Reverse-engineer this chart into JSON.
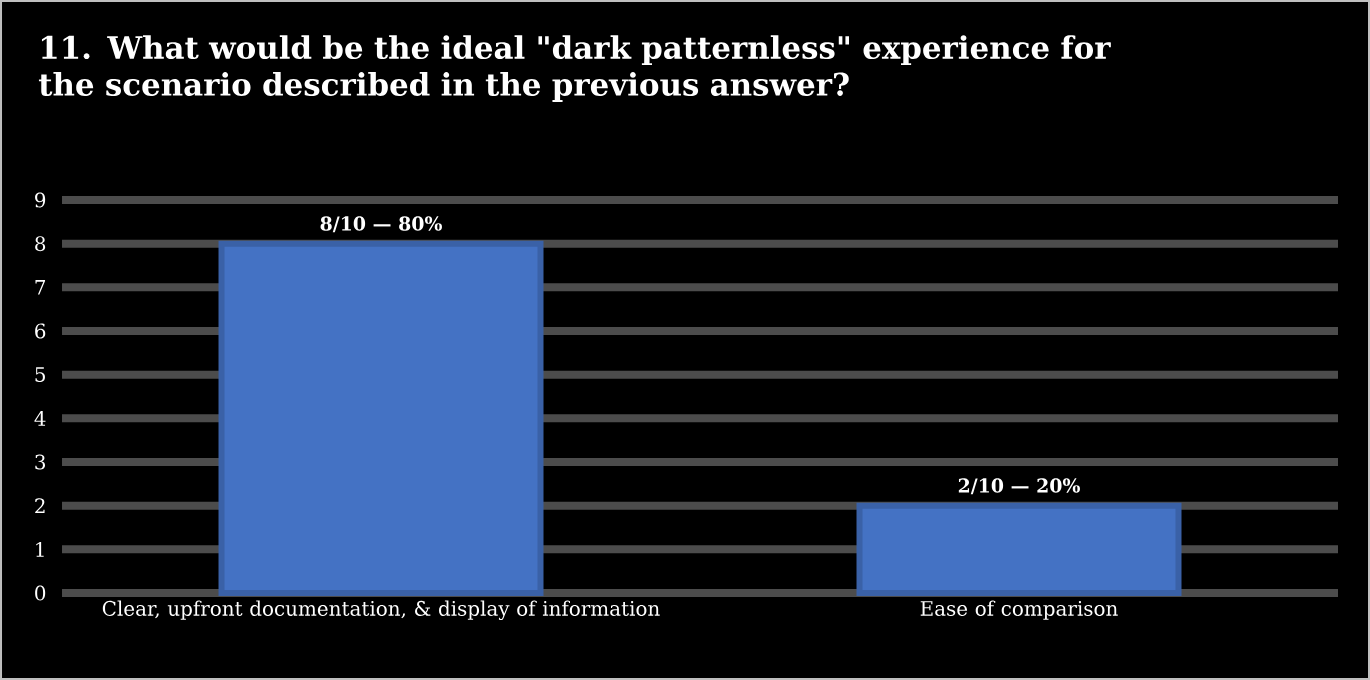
{
  "chart_data": {
    "type": "bar",
    "title": "11. What would be the ideal \"dark patternless\" experience for the scenario described in the previous answer?",
    "categories": [
      "Clear, upfront documentation, & display of information",
      "Ease of comparison"
    ],
    "values": [
      8,
      2
    ],
    "color": "#4472c4",
    "value_labels": [
      "8/10 — 80%",
      "2/10 — 20%"
    ],
    "ylim": [
      0,
      9
    ],
    "yticks": [
      0,
      1,
      2,
      3,
      4,
      5,
      6,
      7,
      8,
      9
    ],
    "grid": "y"
  }
}
